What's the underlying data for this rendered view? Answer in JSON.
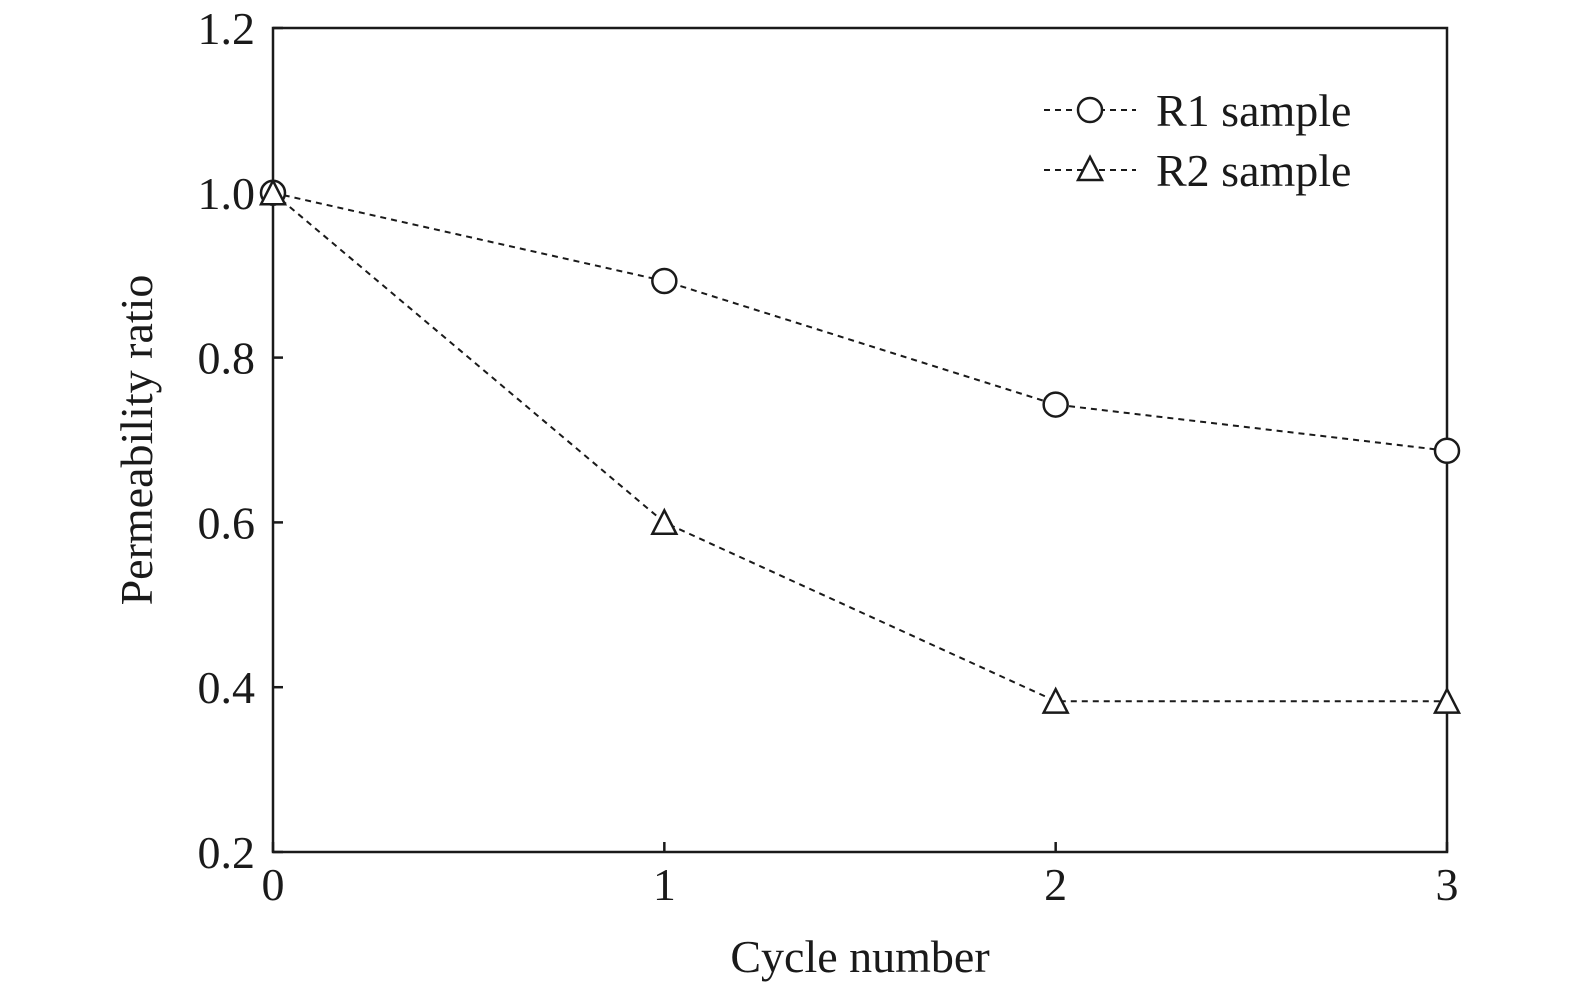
{
  "chart_data": {
    "type": "line",
    "title": "",
    "xlabel": "Cycle number",
    "ylabel": "Permeability ratio",
    "x": [
      0,
      1,
      2,
      3
    ],
    "xticks": [
      "0",
      "1",
      "2",
      "3"
    ],
    "yticks": [
      "0.2",
      "0.4",
      "0.6",
      "0.8",
      "1.0",
      "1.2"
    ],
    "xlim": [
      0,
      3
    ],
    "ylim": [
      0.2,
      1.2
    ],
    "grid": false,
    "legend_position": "top-right",
    "series": [
      {
        "name": "R1 sample",
        "marker": "circle",
        "line_style": "dashed",
        "color": "#1a1a1a",
        "values": [
          1.0,
          0.893,
          0.743,
          0.687
        ]
      },
      {
        "name": "R2 sample",
        "marker": "triangle",
        "line_style": "dashed",
        "color": "#1a1a1a",
        "values": [
          1.0,
          0.6,
          0.383,
          0.383
        ]
      }
    ]
  }
}
